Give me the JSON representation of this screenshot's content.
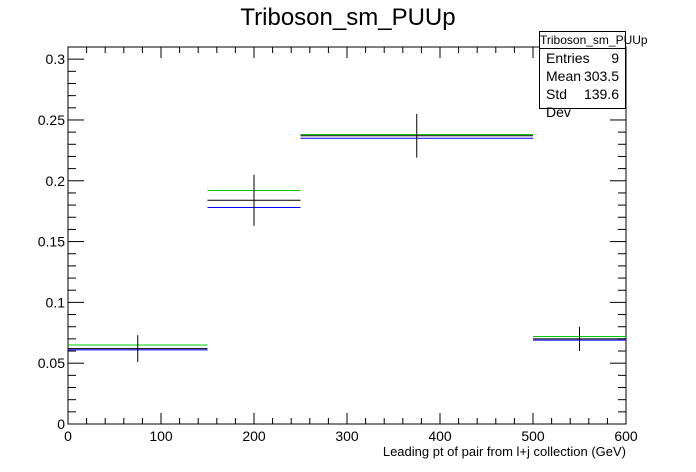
{
  "title": "Triboson_sm_PUUp",
  "stats_box": {
    "name": "Triboson_sm_PUUp",
    "rows": [
      {
        "label": "Entries",
        "value": "9"
      },
      {
        "label": "Mean",
        "value": "303.5"
      },
      {
        "label": "Std Dev",
        "value": "139.6"
      }
    ]
  },
  "colors": {
    "nominal": "#000000",
    "blue": "#0000ff",
    "green": "#00cc00"
  },
  "chart_data": {
    "type": "bar",
    "title": "Triboson_sm_PUUp",
    "xlabel": "Leading pt of pair from l+j collection (GeV)",
    "ylabel": "",
    "xlim": [
      0,
      600
    ],
    "ylim": [
      0,
      0.31
    ],
    "xticks": [
      0,
      100,
      200,
      300,
      400,
      500,
      600
    ],
    "xtick_labels": [
      "0",
      "100",
      "200",
      "300",
      "400",
      "500",
      "600"
    ],
    "yticks": [
      0,
      0.05,
      0.1,
      0.15,
      0.2,
      0.25,
      0.3
    ],
    "ytick_labels": [
      "0",
      "0.05",
      "0.1",
      "0.15",
      "0.2",
      "0.25",
      "0.3"
    ],
    "bins": [
      {
        "xlo": 0,
        "xhi": 150,
        "center": 75
      },
      {
        "xlo": 150,
        "xhi": 250,
        "center": 200
      },
      {
        "xlo": 250,
        "xhi": 500,
        "center": 375
      },
      {
        "xlo": 500,
        "xhi": 600,
        "center": 550
      }
    ],
    "series": [
      {
        "color": "#000000",
        "values": [
          0.062,
          0.184,
          0.237,
          0.07
        ],
        "errors": [
          0.011,
          0.021,
          0.018,
          0.01
        ]
      },
      {
        "color": "#0000ff",
        "values": [
          0.061,
          0.178,
          0.235,
          0.069
        ]
      },
      {
        "color": "#00cc00",
        "values": [
          0.065,
          0.192,
          0.238,
          0.072
        ]
      }
    ],
    "grid": false,
    "legend": "stats box top-right"
  }
}
